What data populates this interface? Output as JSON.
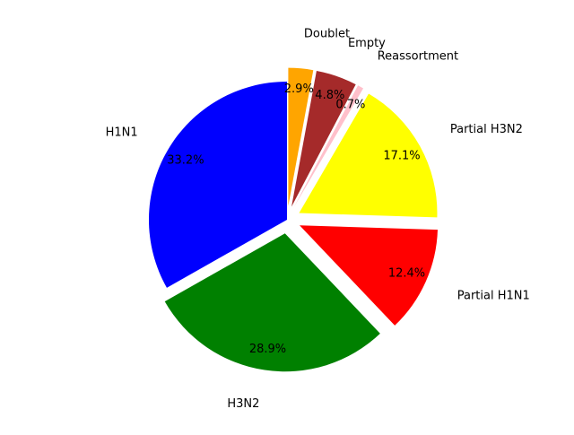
{
  "chart_data": {
    "type": "pie",
    "title": "",
    "start_angle_deg": 90,
    "direction": "counterclockwise",
    "slices": [
      {
        "label": "H1N1",
        "value": 33.2,
        "pct_label": "33.2%",
        "color": "#0000ff",
        "explode": 0.0
      },
      {
        "label": "H3N2",
        "value": 28.9,
        "pct_label": "28.9%",
        "color": "#008000",
        "explode": 0.1
      },
      {
        "label": "Partial H1N1",
        "value": 12.4,
        "pct_label": "12.4%",
        "color": "#ff0000",
        "explode": 0.1
      },
      {
        "label": "Partial H3N2",
        "value": 17.1,
        "pct_label": "17.1%",
        "color": "#ffff00",
        "explode": 0.1
      },
      {
        "label": "Reassortment",
        "value": 0.7,
        "pct_label": "0.7%",
        "color": "#ffc0cb",
        "explode": 0.1
      },
      {
        "label": "Empty",
        "value": 4.8,
        "pct_label": "4.8%",
        "color": "#a52a2a",
        "explode": 0.1
      },
      {
        "label": "Doublet",
        "value": 2.9,
        "pct_label": "2.9%",
        "color": "#ffa500",
        "explode": 0.1
      }
    ]
  }
}
